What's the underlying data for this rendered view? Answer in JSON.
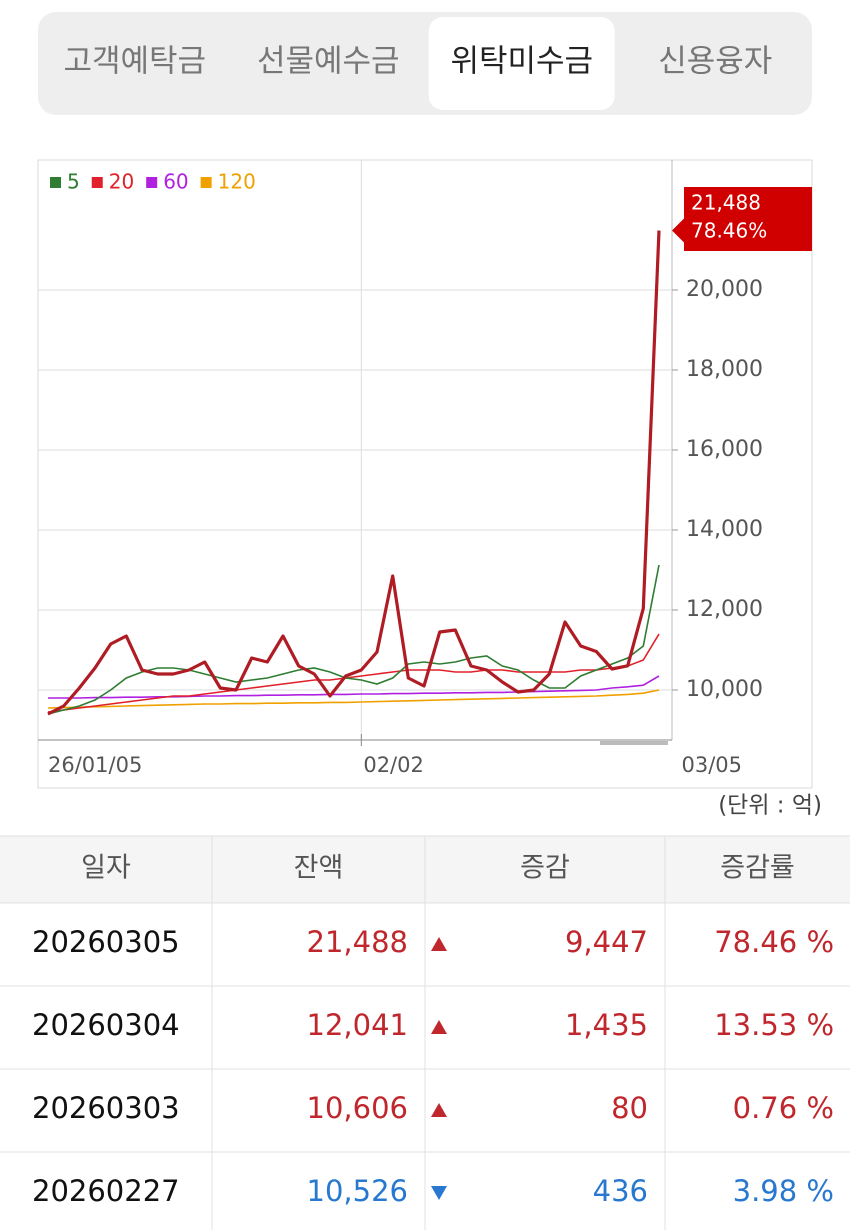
{
  "tabs": {
    "items": [
      "고객예탁금",
      "선물예수금",
      "위탁미수금",
      "신용융자"
    ],
    "active": 2
  },
  "chart_data": {
    "type": "line",
    "categories": [
      "26/01/05",
      null,
      null,
      null,
      null,
      null,
      null,
      null,
      null,
      null,
      null,
      null,
      null,
      null,
      null,
      null,
      null,
      null,
      null,
      null,
      "02/02",
      null,
      null,
      null,
      null,
      null,
      null,
      null,
      null,
      null,
      null,
      null,
      null,
      null,
      null,
      null,
      null,
      null,
      null,
      "03/05"
    ],
    "values": [
      9400,
      9600,
      10050,
      10550,
      11150,
      11350,
      10500,
      10400,
      10400,
      10500,
      10700,
      10050,
      10000,
      10800,
      10700,
      11350,
      10600,
      10400,
      9850,
      10350,
      10500,
      10950,
      12850,
      10300,
      10100,
      11450,
      11500,
      10600,
      10500,
      10200,
      9950,
      10000,
      10400,
      11700,
      11100,
      10962,
      10526,
      10606,
      12041,
      21488
    ],
    "color": "#b01c24",
    "callout": [
      "21,488",
      "78.46%"
    ],
    "callout_color": "#d00000",
    "series": [
      {
        "name": "5",
        "color": "#2e7d32",
        "values": [
          9400,
          9500,
          9600,
          9750,
          10000,
          10300,
          10450,
          10550,
          10550,
          10500,
          10400,
          10300,
          10200,
          10250,
          10300,
          10400,
          10500,
          10550,
          10450,
          10300,
          10250,
          10150,
          10300,
          10650,
          10700,
          10650,
          10700,
          10800,
          10850,
          10600,
          10500,
          10250,
          10050,
          10050,
          10350,
          10500,
          10650,
          10800,
          11100,
          13125
        ]
      },
      {
        "name": "20",
        "color": "#e0202a",
        "values": [
          9450,
          9500,
          9550,
          9600,
          9650,
          9700,
          9750,
          9800,
          9850,
          9850,
          9900,
          9950,
          10000,
          10050,
          10100,
          10150,
          10200,
          10250,
          10250,
          10300,
          10350,
          10400,
          10450,
          10500,
          10500,
          10500,
          10450,
          10450,
          10500,
          10500,
          10450,
          10450,
          10450,
          10450,
          10500,
          10500,
          10550,
          10600,
          10750,
          11400
        ]
      },
      {
        "name": "60",
        "color": "#b020e0",
        "values": [
          9800,
          9800,
          9800,
          9810,
          9810,
          9820,
          9820,
          9830,
          9830,
          9840,
          9850,
          9850,
          9860,
          9860,
          9870,
          9870,
          9880,
          9880,
          9890,
          9890,
          9900,
          9900,
          9910,
          9910,
          9920,
          9920,
          9930,
          9930,
          9940,
          9940,
          9950,
          9960,
          9970,
          9980,
          9990,
          10000,
          10050,
          10080,
          10120,
          10350
        ]
      },
      {
        "name": "120",
        "color": "#f0a000",
        "values": [
          9550,
          9560,
          9570,
          9580,
          9590,
          9600,
          9610,
          9620,
          9630,
          9640,
          9650,
          9650,
          9660,
          9660,
          9670,
          9670,
          9680,
          9680,
          9690,
          9690,
          9700,
          9710,
          9720,
          9730,
          9740,
          9750,
          9760,
          9770,
          9780,
          9790,
          9800,
          9810,
          9820,
          9830,
          9840,
          9850,
          9870,
          9890,
          9920,
          10000
        ]
      }
    ],
    "ylim": [
      8750,
      23250
    ],
    "yticks": [
      {
        "value": 10000,
        "label": "10,000"
      },
      {
        "value": 12000,
        "label": "12,000"
      },
      {
        "value": 14000,
        "label": "14,000"
      },
      {
        "value": 16000,
        "label": "16,000"
      },
      {
        "value": 18000,
        "label": "18,000"
      },
      {
        "value": 20000,
        "label": "20,000"
      }
    ],
    "grid": true
  },
  "unit": "(단위 : 억)",
  "table": {
    "header": [
      "일자",
      "잔액",
      "증감",
      "증감률"
    ],
    "rows": [
      {
        "date": "20260305",
        "balance": "21,488",
        "direction": "up",
        "change": "9,447",
        "rate": "78.46 %"
      },
      {
        "date": "20260304",
        "balance": "12,041",
        "direction": "up",
        "change": "1,435",
        "rate": "13.53 %"
      },
      {
        "date": "20260303",
        "balance": "10,606",
        "direction": "up",
        "change": "80",
        "rate": "0.76 %"
      },
      {
        "date": "20260227",
        "balance": "10,526",
        "direction": "down",
        "change": "436",
        "rate": "3.98 %"
      }
    ]
  }
}
